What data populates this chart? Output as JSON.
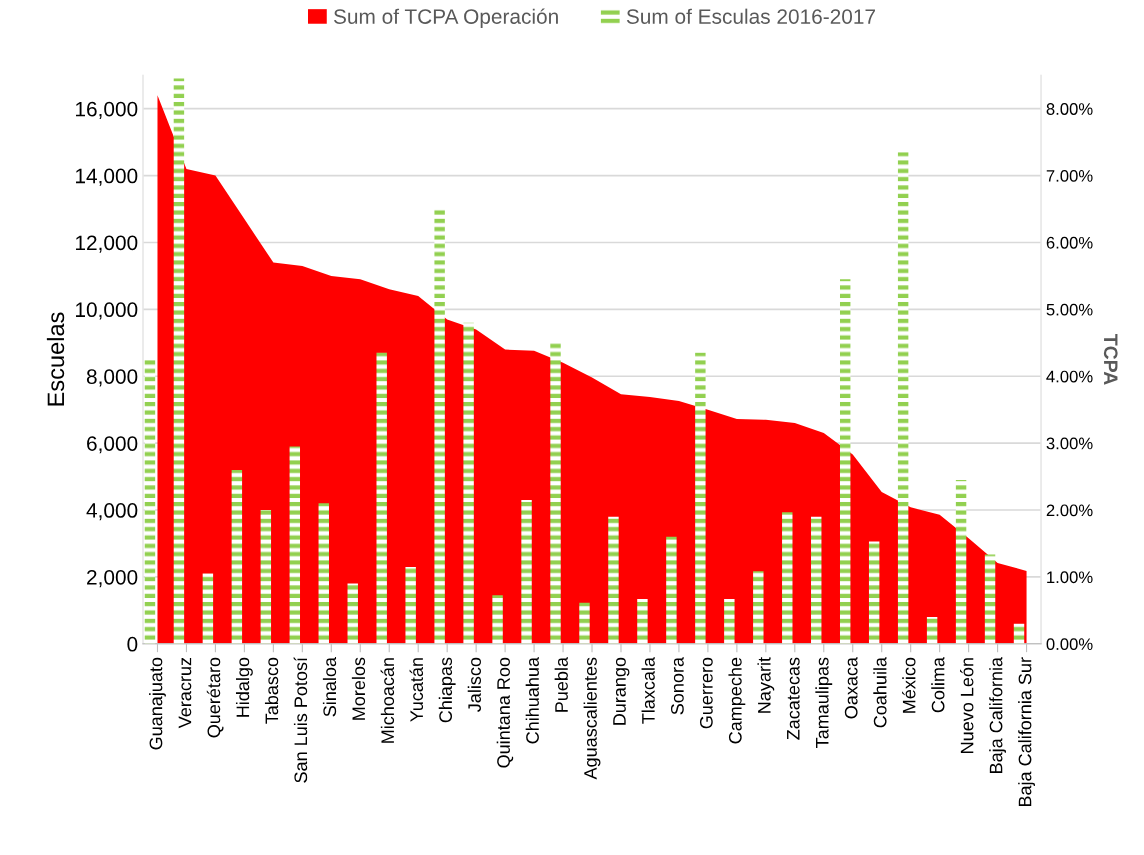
{
  "chart_data": {
    "type": "bar",
    "ylabel": "Escuelas",
    "y2label": "TCPA",
    "categories": [
      "Guanajuato",
      "Veracruz",
      "Querétaro",
      "Hidalgo",
      "Tabasco",
      "San Luis Potosí",
      "Sinaloa",
      "Morelos",
      "Michoacán",
      "Yucatán",
      "Chiapas",
      "Jalisco",
      "Quintana Roo",
      "Chihuahua",
      "Puebla",
      "Aguascalientes",
      "Durango",
      "Tlaxcala",
      "Sonora",
      "Guerrero",
      "Campeche",
      "Nayarit",
      "Zacatecas",
      "Tamaulipas",
      "Oaxaca",
      "Coahuila",
      "México",
      "Colima",
      "Nuevo León",
      "Baja California",
      "Baja California Sur"
    ],
    "series": [
      {
        "name": "Sum of TCPA Operación",
        "type": "area",
        "axis": "y2",
        "color": "#ff0000",
        "values": [
          8.2,
          7.1,
          7.0,
          6.35,
          5.7,
          5.65,
          5.5,
          5.45,
          5.3,
          5.2,
          4.85,
          4.7,
          4.4,
          4.38,
          4.2,
          3.98,
          3.73,
          3.69,
          3.63,
          3.5,
          3.36,
          3.35,
          3.3,
          3.15,
          2.83,
          2.27,
          2.04,
          1.93,
          1.58,
          1.21,
          1.09
        ]
      },
      {
        "name": "Sum of Esculas 2016-2017",
        "axis": "y",
        "color": "#92d050",
        "values": [
          8500,
          16900,
          2100,
          5200,
          4000,
          5900,
          4200,
          1800,
          8700,
          2300,
          13000,
          9600,
          1450,
          4300,
          9000,
          1230,
          3800,
          1340,
          3200,
          8700,
          1340,
          2170,
          3930,
          3800,
          10900,
          3060,
          14700,
          800,
          4900,
          2670,
          600
        ]
      }
    ],
    "ylim": [
      0,
      17000
    ],
    "yticks": [
      {
        "value": 0,
        "label": "0"
      },
      {
        "value": 2000,
        "label": "2,000"
      },
      {
        "value": 4000,
        "label": "4,000"
      },
      {
        "value": 6000,
        "label": "6,000"
      },
      {
        "value": 8000,
        "label": "8,000"
      },
      {
        "value": 10000,
        "label": "10,000"
      },
      {
        "value": 12000,
        "label": "12,000"
      },
      {
        "value": 14000,
        "label": "14,000"
      },
      {
        "value": 16000,
        "label": "16,000"
      }
    ],
    "y2lim": [
      0,
      8.5
    ],
    "y2ticks": [
      {
        "value": 0,
        "label": "0.00%"
      },
      {
        "value": 1,
        "label": "1.00%"
      },
      {
        "value": 2,
        "label": "2.00%"
      },
      {
        "value": 3,
        "label": "3.00%"
      },
      {
        "value": 4,
        "label": "4.00%"
      },
      {
        "value": 5,
        "label": "5.00%"
      },
      {
        "value": 6,
        "label": "6.00%"
      },
      {
        "value": 7,
        "label": "7.00%"
      },
      {
        "value": 8,
        "label": "8.00%"
      }
    ],
    "grid": "y",
    "legend": "top"
  }
}
